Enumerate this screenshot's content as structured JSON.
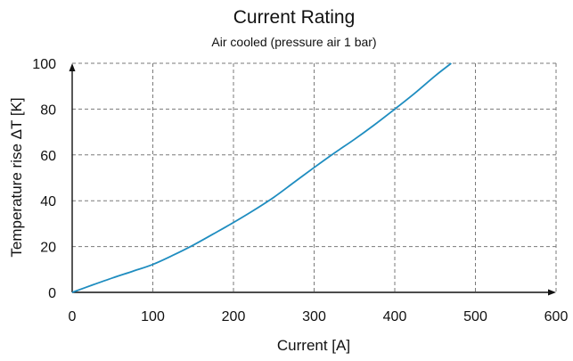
{
  "chart_data": {
    "type": "line",
    "title": "Current Rating",
    "subtitle": "Air cooled (pressure air 1 bar)",
    "xlabel": "Current [A]",
    "ylabel": "Temperature rise ΔT [K]",
    "xlim": [
      0,
      600
    ],
    "ylim": [
      0,
      100
    ],
    "xticks": [
      0,
      100,
      200,
      300,
      400,
      500,
      600
    ],
    "yticks": [
      0,
      20,
      40,
      60,
      80,
      100
    ],
    "grid": true,
    "series": [
      {
        "color": "#1f8dc0",
        "x": [
          0,
          25,
          50,
          75,
          100,
          125,
          150,
          175,
          200,
          225,
          250,
          275,
          300,
          325,
          350,
          375,
          400,
          425,
          450,
          470
        ],
        "y": [
          0,
          3.2,
          6.3,
          9.2,
          12.2,
          16.2,
          20.6,
          25.5,
          30.5,
          35.8,
          41.5,
          48.0,
          54.5,
          60.8,
          66.8,
          73.2,
          80.0,
          87.0,
          94.5,
          100
        ]
      }
    ]
  }
}
